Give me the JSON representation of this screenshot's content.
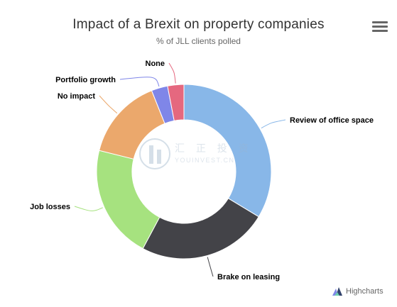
{
  "chart_data": {
    "type": "pie",
    "variant": "donut",
    "title": "Impact of a Brexit on property companies",
    "subtitle": "% of JLL clients polled",
    "slices": [
      {
        "name": "Review of office space",
        "value": 33.5,
        "color": "#88b7e8"
      },
      {
        "name": "Brake on leasing",
        "value": 24.0,
        "color": "#434348"
      },
      {
        "name": "Job losses",
        "value": 21.0,
        "color": "#a6e27f"
      },
      {
        "name": "No impact",
        "value": 15.0,
        "color": "#eba86c"
      },
      {
        "name": "Portfolio growth",
        "value": 3.0,
        "color": "#7f86e8"
      },
      {
        "name": "None",
        "value": 3.0,
        "color": "#e5687f"
      }
    ]
  },
  "toolbar": {
    "menu_icon": "hamburger-menu-icon"
  },
  "credit": {
    "label": "Highcharts",
    "icon": "highcharts-logo-icon"
  },
  "watermark": {
    "text": "汇 正 投 资",
    "sub": "YOUINVEST.CN"
  }
}
